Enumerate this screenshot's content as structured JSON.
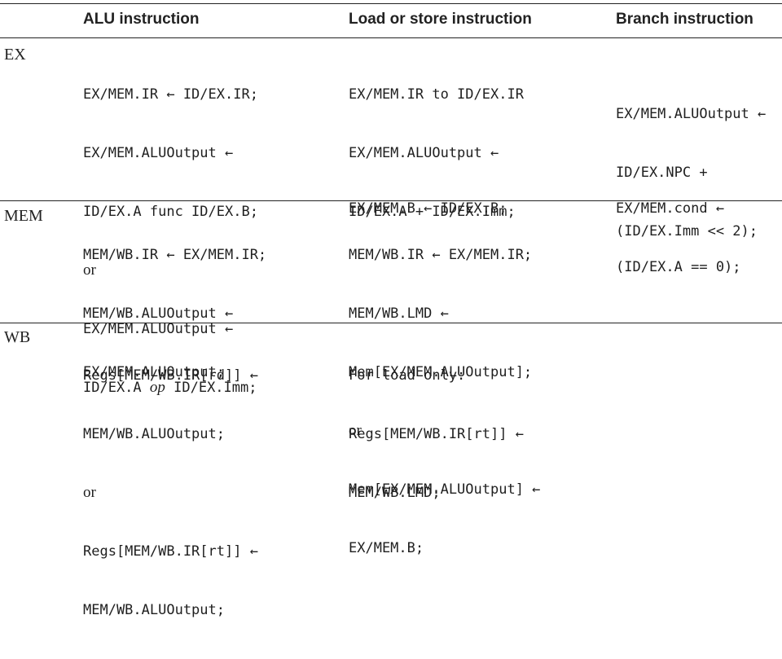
{
  "headers": {
    "alu": "ALU instruction",
    "loadstore": "Load or store instruction",
    "branch": "Branch instruction"
  },
  "rows": {
    "ex": {
      "stage": "EX",
      "alu": {
        "l1": "EX/MEM.IR ← ID/EX.IR;",
        "l2": "EX/MEM.ALUOutput ←",
        "l3": "ID/EX.A func ID/EX.B;",
        "l4": "or",
        "l5": "EX/MEM.ALUOutput ←",
        "l6a": "ID/EX.A ",
        "l6op": "op",
        "l6b": " ID/EX.Imm;"
      },
      "loadstore": {
        "l1": "EX/MEM.IR to ID/EX.IR",
        "l2": "EX/MEM.ALUOutput ←",
        "l3": "ID/EX.A + ID/EX.Imm;",
        "l4": "EX/MEM.B ← ID/EX.B;"
      },
      "branch": {
        "l1": "EX/MEM.ALUOutput ←",
        "l2": "ID/EX.NPC +",
        "l3": "(ID/EX.Imm << 2);",
        "l4": "EX/MEM.cond ←",
        "l5": "(ID/EX.A == 0);"
      }
    },
    "mem": {
      "stage": "MEM",
      "alu": {
        "l1": "MEM/WB.IR ← EX/MEM.IR;",
        "l2": "MEM/WB.ALUOutput ←",
        "l3": "EX/MEM.ALUOutput;"
      },
      "loadstore": {
        "l1": "MEM/WB.IR ← EX/MEM.IR;",
        "l2": "MEM/WB.LMD ←",
        "l3": "Mem[EX/MEM.ALUOutput];",
        "l4": "or",
        "l5": "Mem[EX/MEM.ALUOutput] ←",
        "l6": "EX/MEM.B;"
      }
    },
    "wb": {
      "stage": "WB",
      "alu": {
        "l1": "Regs[MEM/WB.IR[rd]] ←",
        "l2": "MEM/WB.ALUOutput;",
        "l3": "or",
        "l4": "Regs[MEM/WB.IR[rt]] ←",
        "l5": "MEM/WB.ALUOutput;"
      },
      "loadstore": {
        "l1": "For load only:",
        "l2": "Regs[MEM/WB.IR[rt]] ←",
        "l3": "MEM/WB.LMD;"
      }
    }
  }
}
